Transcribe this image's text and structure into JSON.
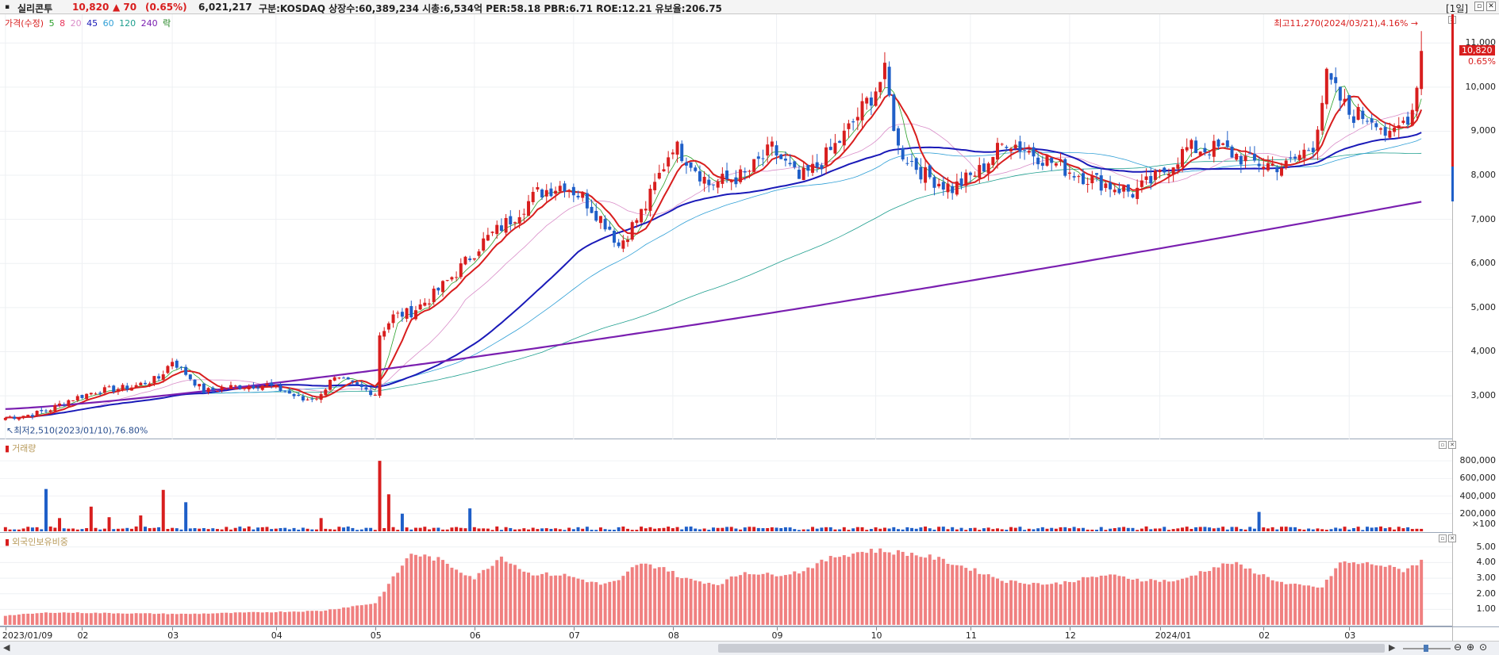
{
  "header": {
    "name": "실리콘투",
    "price": "10,820",
    "change": "▲ 70",
    "change_pct": "(0.65%)",
    "volume": "6,021,217",
    "info": "구분:KOSDAQ 상장수:60,389,234 시총:6,534억 PER:58.18 PBR:6.71 ROE:12.21 유보율:206.75",
    "period": "[1일]"
  },
  "legend": {
    "price_label": "가격(수정)",
    "ma": [
      {
        "label": "5",
        "color": "#2aa02a"
      },
      {
        "label": "8",
        "color": "#e8335a"
      },
      {
        "label": "20",
        "color": "#d98cc8"
      },
      {
        "label": "45",
        "color": "#1a1ab8"
      },
      {
        "label": "60",
        "color": "#2f9fd6"
      },
      {
        "label": "120",
        "color": "#1f9f8f"
      },
      {
        "label": "240",
        "color": "#7a1fb0"
      },
      {
        "label": "락",
        "color": "#1a7f1a"
      }
    ]
  },
  "volume_label": "거래량",
  "foreign_label": "외국인보유비중",
  "chart_data": [
    {
      "type": "candlestick",
      "title": "실리콘투",
      "y_ticks": [
        "11,000",
        "10,000",
        "9,000",
        "8,000",
        "7,000",
        "6,000",
        "5,000",
        "4,000",
        "3,000"
      ],
      "y_range": [
        2300,
        11400
      ],
      "x_ticks": [
        "2023/01/09",
        "02",
        "03",
        "04",
        "05",
        "06",
        "07",
        "08",
        "09",
        "10",
        "11",
        "12",
        "2024/01",
        "02",
        "03"
      ],
      "x_tick_index": [
        0,
        17,
        37,
        60,
        82,
        104,
        126,
        148,
        171,
        193,
        214,
        236,
        256,
        279,
        298
      ],
      "total_bars": 315,
      "anchors_close": [
        [
          0,
          2500
        ],
        [
          6,
          2580
        ],
        [
          10,
          2700
        ],
        [
          14,
          2900
        ],
        [
          20,
          3100
        ],
        [
          28,
          3200
        ],
        [
          34,
          3400
        ],
        [
          37,
          3800
        ],
        [
          40,
          3500
        ],
        [
          44,
          3100
        ],
        [
          50,
          3200
        ],
        [
          58,
          3250
        ],
        [
          62,
          3100
        ],
        [
          66,
          2900
        ],
        [
          70,
          3000
        ],
        [
          72,
          3400
        ],
        [
          76,
          3300
        ],
        [
          82,
          3050
        ],
        [
          83,
          4400
        ],
        [
          86,
          4800
        ],
        [
          90,
          4900
        ],
        [
          94,
          5200
        ],
        [
          100,
          5800
        ],
        [
          106,
          6500
        ],
        [
          112,
          7000
        ],
        [
          118,
          7600
        ],
        [
          124,
          7800
        ],
        [
          128,
          7500
        ],
        [
          134,
          6800
        ],
        [
          136,
          6400
        ],
        [
          142,
          7300
        ],
        [
          148,
          8700
        ],
        [
          152,
          8300
        ],
        [
          156,
          7800
        ],
        [
          164,
          8000
        ],
        [
          170,
          8600
        ],
        [
          176,
          7900
        ],
        [
          180,
          8200
        ],
        [
          186,
          8900
        ],
        [
          192,
          9800
        ],
        [
          195,
          10300
        ],
        [
          198,
          8600
        ],
        [
          204,
          8000
        ],
        [
          210,
          7700
        ],
        [
          216,
          8100
        ],
        [
          222,
          8800
        ],
        [
          230,
          8400
        ],
        [
          236,
          8100
        ],
        [
          244,
          7800
        ],
        [
          250,
          7600
        ],
        [
          256,
          8000
        ],
        [
          262,
          8600
        ],
        [
          270,
          8600
        ],
        [
          276,
          8300
        ],
        [
          284,
          8200
        ],
        [
          290,
          8700
        ],
        [
          293,
          10200
        ],
        [
          298,
          9400
        ],
        [
          304,
          9300
        ],
        [
          307,
          8800
        ],
        [
          312,
          9500
        ],
        [
          314,
          10820
        ]
      ],
      "last_close": 10820,
      "high": {
        "value": 11270,
        "label": "최고11,270(2024/03/21),4.16%"
      },
      "low": {
        "value": 2510,
        "label": "최저2,510(2023/01/10),76.80%"
      },
      "last_label": "10,820",
      "last_pct": "0.65%"
    },
    {
      "type": "bar",
      "title": "거래량",
      "y_ticks": [
        "800,000",
        "600,000",
        "400,000",
        "200,000"
      ],
      "unit_label": "×100",
      "y_range": [
        0,
        900000
      ],
      "spikes": [
        [
          9,
          480000
        ],
        [
          12,
          150000
        ],
        [
          19,
          280000
        ],
        [
          23,
          160000
        ],
        [
          30,
          180000
        ],
        [
          35,
          470000
        ],
        [
          40,
          330000
        ],
        [
          70,
          150000
        ],
        [
          83,
          800000
        ],
        [
          85,
          420000
        ],
        [
          88,
          200000
        ],
        [
          103,
          260000
        ],
        [
          278,
          220000
        ]
      ]
    },
    {
      "type": "bar",
      "title": "외국인보유비중",
      "y_ticks": [
        "5.00",
        "4.00",
        "3.00",
        "2.00",
        "1.00"
      ],
      "y_range": [
        0,
        5.6
      ],
      "anchors": [
        [
          0,
          0.6
        ],
        [
          10,
          0.8
        ],
        [
          40,
          0.7
        ],
        [
          70,
          0.9
        ],
        [
          82,
          1.4
        ],
        [
          86,
          3.0
        ],
        [
          90,
          4.6
        ],
        [
          96,
          4.2
        ],
        [
          100,
          3.6
        ],
        [
          104,
          3.0
        ],
        [
          110,
          4.4
        ],
        [
          116,
          3.3
        ],
        [
          124,
          3.2
        ],
        [
          132,
          2.6
        ],
        [
          136,
          2.8
        ],
        [
          140,
          3.9
        ],
        [
          146,
          3.7
        ],
        [
          150,
          3.0
        ],
        [
          158,
          2.6
        ],
        [
          164,
          3.4
        ],
        [
          170,
          3.2
        ],
        [
          176,
          3.4
        ],
        [
          184,
          4.4
        ],
        [
          192,
          4.8
        ],
        [
          200,
          4.6
        ],
        [
          206,
          4.3
        ],
        [
          214,
          3.6
        ],
        [
          222,
          2.8
        ],
        [
          232,
          2.6
        ],
        [
          244,
          3.2
        ],
        [
          252,
          2.9
        ],
        [
          260,
          2.8
        ],
        [
          266,
          3.5
        ],
        [
          272,
          4.0
        ],
        [
          278,
          3.3
        ],
        [
          284,
          2.6
        ],
        [
          292,
          2.4
        ],
        [
          296,
          4.0
        ],
        [
          304,
          3.9
        ],
        [
          310,
          3.5
        ],
        [
          314,
          4.1
        ]
      ]
    }
  ]
}
